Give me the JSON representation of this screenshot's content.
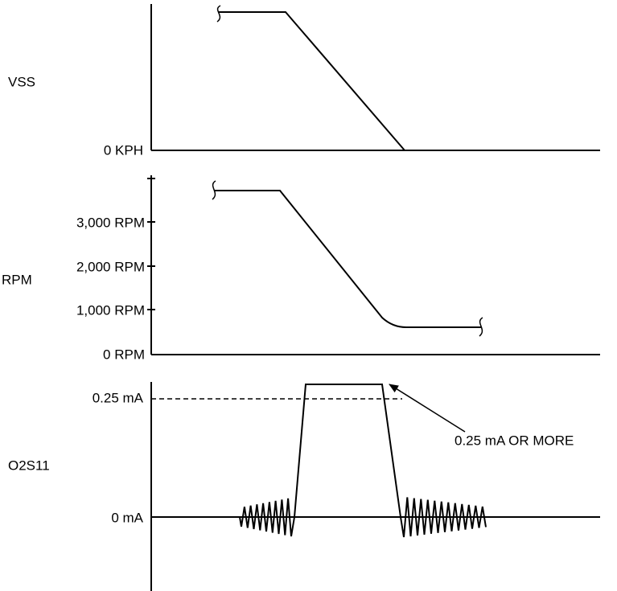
{
  "panels": [
    {
      "label": "VSS",
      "ticks": [
        "0 KPH"
      ]
    },
    {
      "label": "RPM",
      "ticks": [
        "3,000 RPM",
        "2,000 RPM",
        "1,000 RPM",
        "0 RPM"
      ]
    },
    {
      "label": "O2S11",
      "ticks": [
        "0.25 mA",
        "0 mA"
      ]
    }
  ],
  "annotation": "0.25 mA OR MORE"
}
